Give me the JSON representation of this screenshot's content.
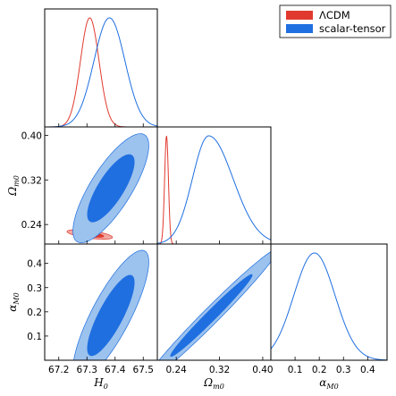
{
  "chart_data": {
    "type": "corner",
    "parameters": [
      {
        "key": "H0",
        "label": "H",
        "sub": "0",
        "range": [
          67.15,
          67.55
        ],
        "ticks": [
          67.2,
          67.3,
          67.4,
          67.5
        ]
      },
      {
        "key": "Om",
        "label": "Ω",
        "sub": "m0",
        "range": [
          0.205,
          0.415
        ],
        "ticks": [
          0.24,
          0.32,
          0.4
        ]
      },
      {
        "key": "aM",
        "label": "α",
        "sub": "M0",
        "range": [
          0.0,
          0.48
        ],
        "ticks": [
          0.1,
          0.2,
          0.3,
          0.4
        ]
      }
    ],
    "tick_labels": {
      "H0": [
        "67.2",
        "67.3",
        "67.4",
        "67.5"
      ],
      "Om": [
        "0.24",
        "0.32",
        "0.40"
      ],
      "aM": [
        "0.1",
        "0.2",
        "0.3",
        "0.4"
      ]
    },
    "legend": {
      "placement": "top-right",
      "entries": [
        {
          "name": "ΛCDM",
          "color": "#e03a2f"
        },
        {
          "name": "scalar-tensor",
          "color": "#1f6fe0"
        }
      ]
    },
    "series": [
      {
        "name": "ΛCDM",
        "color": "#e03a2f",
        "marginals": {
          "H0": {
            "mean": 67.31,
            "sigma": 0.033
          },
          "Om": {
            "mean": 0.222,
            "sigma": 0.0035
          }
        },
        "contours": [
          {
            "x": "H0",
            "y": "Om",
            "center": [
              67.31,
              0.2222
            ],
            "sigma_x": 0.033,
            "sigma_y": 0.0035,
            "rho": -0.6
          }
        ]
      },
      {
        "name": "scalar-tensor",
        "color": "#1f6fe0",
        "marginals": {
          "H0": {
            "mean": 67.38,
            "sigma": 0.055
          },
          "Om": {
            "mean": 0.3,
            "sigma": 0.03,
            "skew_right": 1.5
          },
          "aM": {
            "mean": 0.18,
            "sigma": 0.085
          }
        },
        "contours": [
          {
            "x": "H0",
            "y": "Om",
            "center": [
              67.385,
              0.305
            ],
            "sigma_x": 0.055,
            "sigma_y": 0.04,
            "rho": 0.78
          },
          {
            "x": "H0",
            "y": "aM",
            "center": [
              67.385,
              0.185
            ],
            "sigma_x": 0.055,
            "sigma_y": 0.11,
            "rho": 0.82
          },
          {
            "x": "Om",
            "y": "aM",
            "center": [
              0.305,
              0.185
            ],
            "sigma_x": 0.05,
            "sigma_y": 0.112,
            "rho": 0.985
          }
        ]
      }
    ],
    "contour_levels": [
      "68%",
      "95%"
    ],
    "contour_fill": {
      "ΛCDM": {
        "inner": "#e03a2f",
        "outer": "#f0a8a2"
      },
      "scalar-tensor": {
        "inner": "#1f6fe0",
        "outer": "#9cc2ee"
      }
    },
    "grid": false
  }
}
